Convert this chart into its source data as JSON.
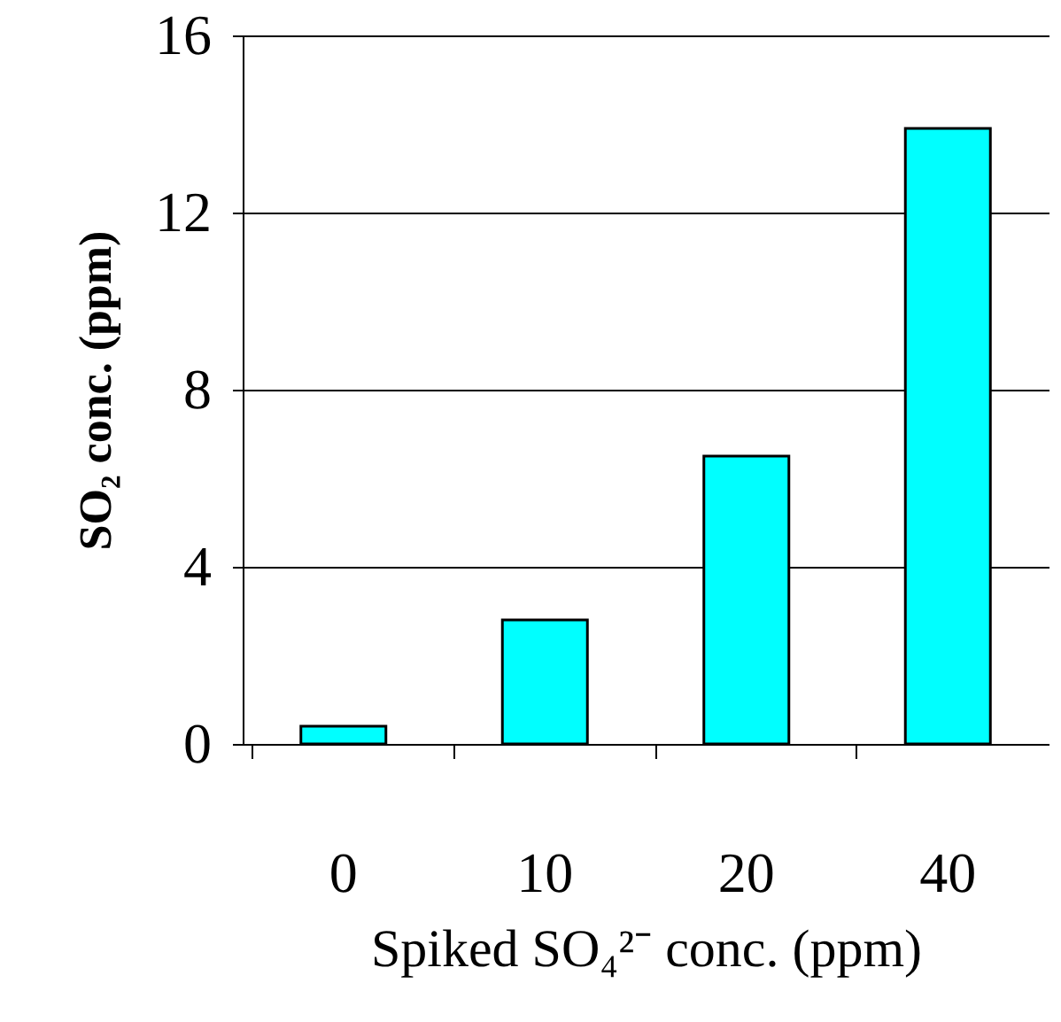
{
  "chart_data": {
    "type": "bar",
    "xlabel": "Spiked SO₄²⁻ conc. (ppm)",
    "ylabel": "SO₂ conc. (ppm)",
    "categories": [
      "0",
      "10",
      "20",
      "40"
    ],
    "series": [
      {
        "color": "#00ffff",
        "values": [
          0.4,
          2.8,
          6.5,
          13.9
        ]
      }
    ],
    "ylim": [
      0,
      16
    ],
    "yticks": [
      0,
      4,
      8,
      12,
      16
    ],
    "grid": "y"
  }
}
